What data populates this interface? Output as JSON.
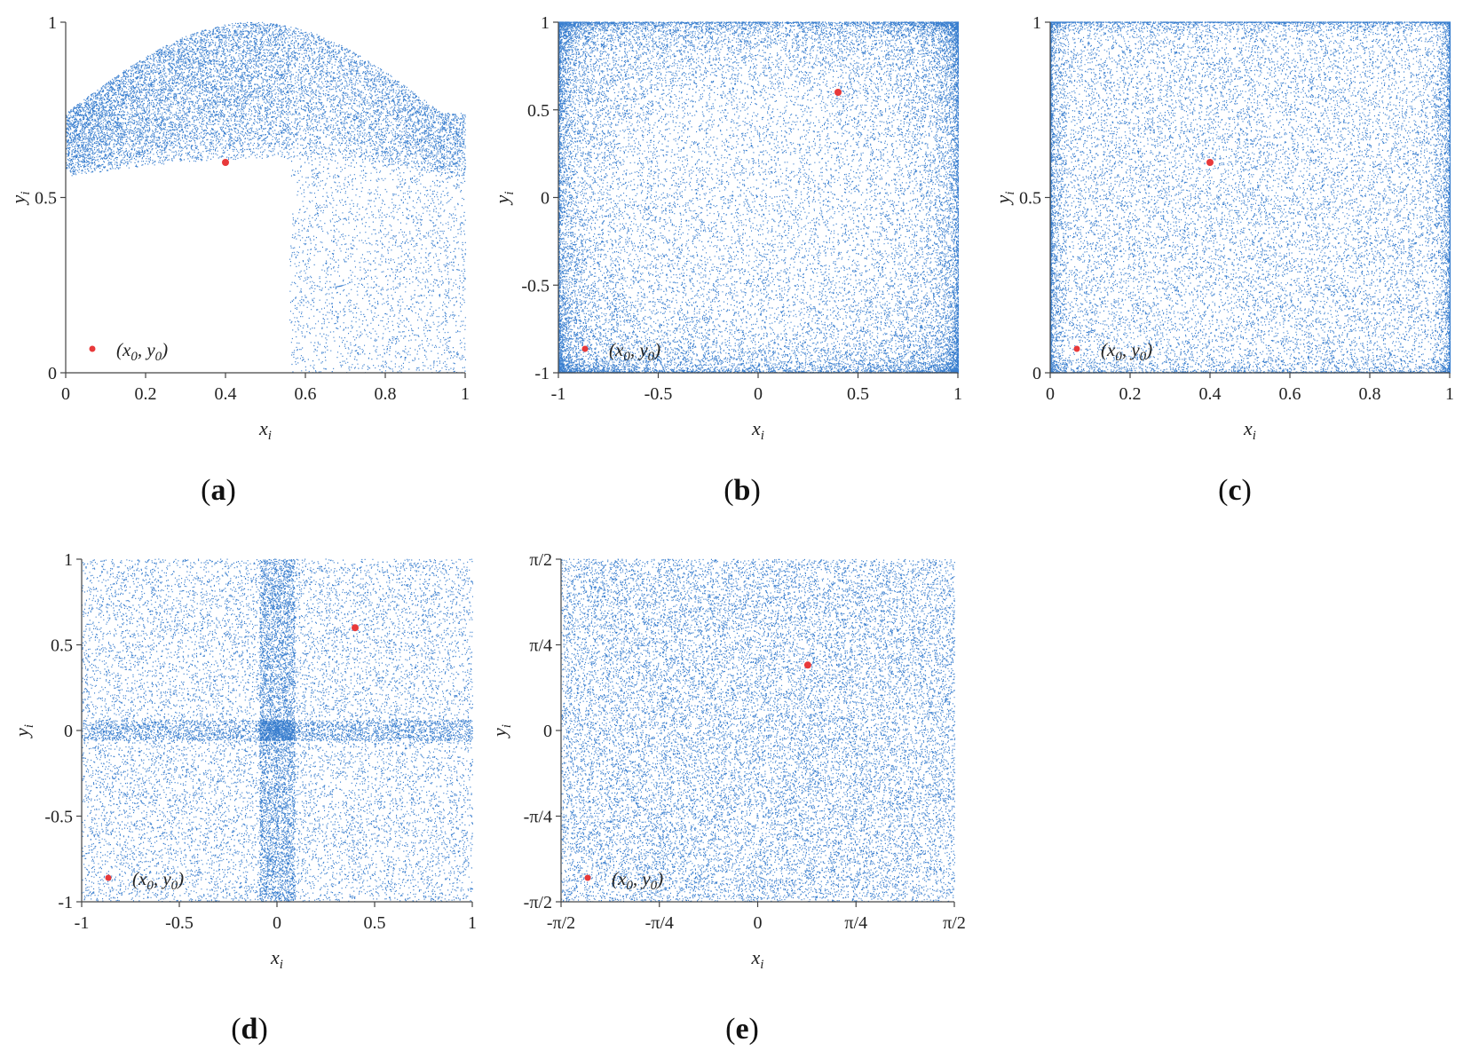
{
  "chart_data": [
    {
      "panel": "a",
      "type": "scatter",
      "map": "logistic-2d",
      "xlabel": "x",
      "xlabel_sub": "i",
      "ylabel": "y",
      "ylabel_sub": "i",
      "xlim": [
        0,
        1
      ],
      "ylim": [
        0,
        1
      ],
      "xticks": [
        0,
        0.2,
        0.4,
        0.6,
        0.8,
        1
      ],
      "xtick_labels": [
        "0",
        "0.2",
        "0.4",
        "0.6",
        "0.8",
        "1"
      ],
      "yticks": [
        0,
        0.5,
        1
      ],
      "ytick_labels": [
        "0",
        "0.5",
        "1"
      ],
      "grid": false,
      "initial_point": {
        "x": 0.4,
        "y": 0.6
      },
      "legend": {
        "label": "(x0, y0)",
        "base_x": "x",
        "sub_x": "0",
        "base_y": "y",
        "sub_y": "0",
        "placement": "bottom-left"
      },
      "colors": {
        "points": "#3a7fcf",
        "initial": "#e8393a"
      },
      "tag": {
        "open": "(",
        "letter": "a",
        "close": ")"
      }
    },
    {
      "panel": "b",
      "type": "scatter",
      "map": "chebyshev-like",
      "xlabel": "x",
      "xlabel_sub": "i",
      "ylabel": "y",
      "ylabel_sub": "i",
      "xlim": [
        -1,
        1
      ],
      "ylim": [
        -1,
        1
      ],
      "xticks": [
        -1,
        -0.5,
        0,
        0.5,
        1
      ],
      "xtick_labels": [
        "-1",
        "-0.5",
        "0",
        "0.5",
        "1"
      ],
      "yticks": [
        -1,
        -0.5,
        0,
        0.5,
        1
      ],
      "ytick_labels": [
        "-1",
        "-0.5",
        "0",
        "0.5",
        "1"
      ],
      "grid": false,
      "initial_point": {
        "x": 0.4,
        "y": 0.6
      },
      "legend": {
        "label": "(x0, y0)",
        "base_x": "x",
        "sub_x": "0",
        "base_y": "y",
        "sub_y": "0",
        "placement": "bottom-left"
      },
      "colors": {
        "points": "#3a7fcf",
        "initial": "#e8393a"
      },
      "tag": {
        "open": "(",
        "letter": "b",
        "close": ")"
      }
    },
    {
      "panel": "c",
      "type": "scatter",
      "map": "uniform-edges",
      "xlabel": "x",
      "xlabel_sub": "i",
      "ylabel": "y",
      "ylabel_sub": "i",
      "xlim": [
        0,
        1
      ],
      "ylim": [
        0,
        1
      ],
      "xticks": [
        0,
        0.2,
        0.4,
        0.6,
        0.8,
        1
      ],
      "xtick_labels": [
        "0",
        "0.2",
        "0.4",
        "0.6",
        "0.8",
        "1"
      ],
      "yticks": [
        0,
        0.5,
        1
      ],
      "ytick_labels": [
        "0",
        "0.5",
        "1"
      ],
      "grid": false,
      "initial_point": {
        "x": 0.4,
        "y": 0.6
      },
      "legend": {
        "label": "(x0, y0)",
        "base_x": "x",
        "sub_x": "0",
        "base_y": "y",
        "sub_y": "0",
        "placement": "bottom-left"
      },
      "colors": {
        "points": "#3a7fcf",
        "initial": "#e8393a"
      },
      "tag": {
        "open": "(",
        "letter": "c",
        "close": ")"
      }
    },
    {
      "panel": "d",
      "type": "scatter",
      "map": "center-cross",
      "xlabel": "x",
      "xlabel_sub": "i",
      "ylabel": "y",
      "ylabel_sub": "i",
      "xlim": [
        -1,
        1
      ],
      "ylim": [
        -1,
        1
      ],
      "xticks": [
        -1,
        -0.5,
        0,
        0.5,
        1
      ],
      "xtick_labels": [
        "-1",
        "-0.5",
        "0",
        "0.5",
        "1"
      ],
      "yticks": [
        -1,
        -0.5,
        0,
        0.5,
        1
      ],
      "ytick_labels": [
        "-1",
        "-0.5",
        "0",
        "0.5",
        "1"
      ],
      "grid": false,
      "initial_point": {
        "x": 0.4,
        "y": 0.6
      },
      "legend": {
        "label": "(x0, y0)",
        "base_x": "x",
        "sub_x": "0",
        "base_y": "y",
        "sub_y": "0",
        "placement": "bottom-left"
      },
      "colors": {
        "points": "#3a7fcf",
        "initial": "#e8393a"
      },
      "tag": {
        "open": "(",
        "letter": "d",
        "close": ")"
      }
    },
    {
      "panel": "e",
      "type": "scatter",
      "map": "uniform",
      "xlabel": "x",
      "xlabel_sub": "i",
      "ylabel": "y",
      "ylabel_sub": "i",
      "xlim": [
        -1.5708,
        1.5708
      ],
      "ylim": [
        -1.5708,
        1.5708
      ],
      "xticks": [
        -1.5708,
        -0.7854,
        0,
        0.7854,
        1.5708
      ],
      "xtick_labels": [
        "-π/2",
        "-π/4",
        "0",
        "π/4",
        "π/2"
      ],
      "yticks": [
        -1.5708,
        -0.7854,
        0,
        0.7854,
        1.5708
      ],
      "ytick_labels": [
        "-π/2",
        "-π/4",
        "0",
        "π/4",
        "π/2"
      ],
      "grid": false,
      "initial_point": {
        "x": 0.4,
        "y": 0.6
      },
      "legend": {
        "label": "(x0, y0)",
        "base_x": "x",
        "sub_x": "0",
        "base_y": "y",
        "sub_y": "0",
        "placement": "bottom-left"
      },
      "colors": {
        "points": "#3a7fcf",
        "initial": "#e8393a"
      },
      "tag": {
        "open": "(",
        "letter": "e",
        "close": ")"
      }
    }
  ]
}
